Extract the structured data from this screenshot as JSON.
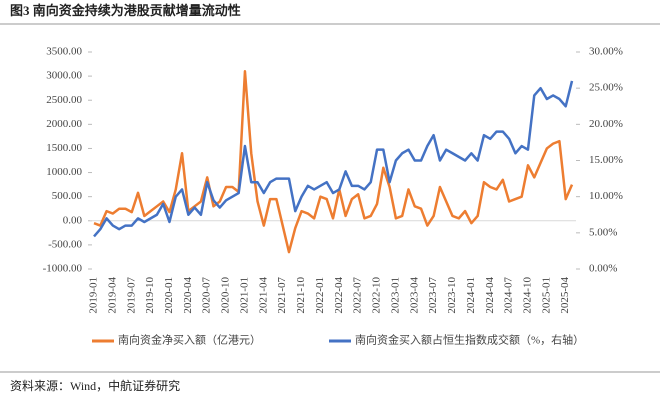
{
  "chart_data": {
    "type": "line",
    "title": "图3  南向资金持续为港股贡献增量流动性",
    "source": "资料来源：Wind，中航证券研究",
    "categories": [
      "2019-01",
      null,
      null,
      "2019-04",
      null,
      null,
      "2019-07",
      null,
      null,
      "2019-10",
      null,
      null,
      "2020-01",
      null,
      null,
      "2020-04",
      null,
      null,
      "2020-07",
      null,
      null,
      "2020-10",
      null,
      null,
      "2021-01",
      null,
      null,
      "2021-04",
      null,
      null,
      "2021-07",
      null,
      null,
      "2021-10",
      null,
      null,
      "2022-01",
      null,
      null,
      "2022-04",
      null,
      null,
      "2022-07",
      null,
      null,
      "2022-10",
      null,
      null,
      "2023-01",
      null,
      null,
      "2023-04",
      null,
      null,
      "2023-07",
      null,
      null,
      "2023-10",
      null,
      null,
      "2024-01",
      null,
      null,
      "2024-04",
      null,
      null,
      "2024-07",
      null,
      null,
      "2024-10",
      null,
      null,
      "2025-01",
      null,
      null,
      "2025-04",
      null
    ],
    "series": [
      {
        "name": "南向资金净买入额（亿港元）",
        "color": "#ED7D31",
        "values": [
          -50,
          -100,
          200,
          150,
          250,
          250,
          180,
          580,
          100,
          200,
          300,
          400,
          180,
          650,
          1400,
          200,
          300,
          400,
          900,
          300,
          400,
          700,
          700,
          600,
          3100,
          1400,
          400,
          -100,
          450,
          450,
          -100,
          -650,
          -150,
          200,
          150,
          50,
          500,
          450,
          50,
          650,
          100,
          450,
          550,
          50,
          100,
          350,
          1100,
          700,
          50,
          100,
          650,
          300,
          250,
          -100,
          100,
          700,
          400,
          100,
          50,
          200,
          -50,
          100,
          800,
          700,
          650,
          850,
          400,
          450,
          500,
          1150,
          900,
          1200,
          1500,
          1600,
          1650,
          450,
          750
        ]
      },
      {
        "name": "南向资金买入额占恒生指数成交额（%，右轴）",
        "color": "#4472C4",
        "axis": "y2",
        "values": [
          4.5,
          5.5,
          7,
          6,
          5.5,
          6,
          6,
          7,
          6.5,
          7,
          7.5,
          9,
          6.5,
          10,
          11,
          7.5,
          8.5,
          7.5,
          12,
          9.5,
          8.5,
          9.5,
          10,
          10.5,
          17,
          12,
          12,
          10.5,
          12,
          12.5,
          12.5,
          12.5,
          8,
          10,
          11.5,
          11,
          11.5,
          12,
          10.5,
          11,
          13.5,
          11.5,
          11.5,
          11,
          12,
          16.5,
          16.5,
          12,
          15,
          16,
          16.5,
          15,
          15,
          17,
          18.5,
          15,
          16.5,
          16,
          15.5,
          15,
          16,
          15,
          18.5,
          18,
          19,
          19,
          18,
          16,
          17,
          16.5,
          24,
          25,
          23.5,
          24,
          23.5,
          22.5,
          26
        ]
      }
    ],
    "ylim": [
      -1000,
      3500
    ],
    "yticks": [
      {
        "value": -1000,
        "label": "-1000.00"
      },
      {
        "value": -500,
        "label": "-500.00"
      },
      {
        "value": 0,
        "label": "0.00"
      },
      {
        "value": 500,
        "label": "500.00"
      },
      {
        "value": 1000,
        "label": "1000.00"
      },
      {
        "value": 1500,
        "label": "1500.00"
      },
      {
        "value": 2000,
        "label": "2000.00"
      },
      {
        "value": 2500,
        "label": "2500.00"
      },
      {
        "value": 3000,
        "label": "3000.00"
      },
      {
        "value": 3500,
        "label": "3500.00"
      }
    ],
    "y2lim": [
      0,
      30
    ],
    "y2ticks": [
      {
        "value": 0,
        "label": "0.00%"
      },
      {
        "value": 5,
        "label": "5.00%"
      },
      {
        "value": 10,
        "label": "10.00%"
      },
      {
        "value": 15,
        "label": "15.00%"
      },
      {
        "value": 20,
        "label": "20.00%"
      },
      {
        "value": 25,
        "label": "25.00%"
      },
      {
        "value": 30,
        "label": "30.00%"
      }
    ],
    "grid": false,
    "legend": "bottom"
  }
}
